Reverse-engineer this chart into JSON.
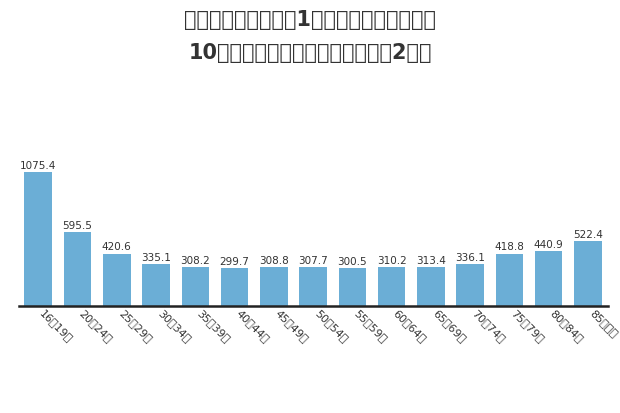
{
  "title_line1": "原付以上運転者（第1当事者）の免許保有者",
  "title_line2": "10万人当たり交通事故件数（令和2年）",
  "categories": [
    "16〜19歳",
    "20〜24歳",
    "25〜29歳",
    "30〜34歳",
    "35〜39歳",
    "40〜44歳",
    "45〜49歳",
    "50〜54歳",
    "55〜59歳",
    "60〜64歳",
    "65〜69歳",
    "70〜74歳",
    "75〜79歳",
    "80〜84歳",
    "85歳以上"
  ],
  "values": [
    1075.4,
    595.5,
    420.6,
    335.1,
    308.2,
    299.7,
    308.8,
    307.7,
    300.5,
    310.2,
    313.4,
    336.1,
    418.8,
    440.9,
    522.4
  ],
  "bar_color": "#6baed6",
  "background_color": "#ffffff",
  "ylim": [
    0,
    1200
  ],
  "title_fontsize": 15,
  "label_fontsize": 7.5,
  "tick_fontsize": 8,
  "title_color": "#333333",
  "bar_label_color": "#333333"
}
